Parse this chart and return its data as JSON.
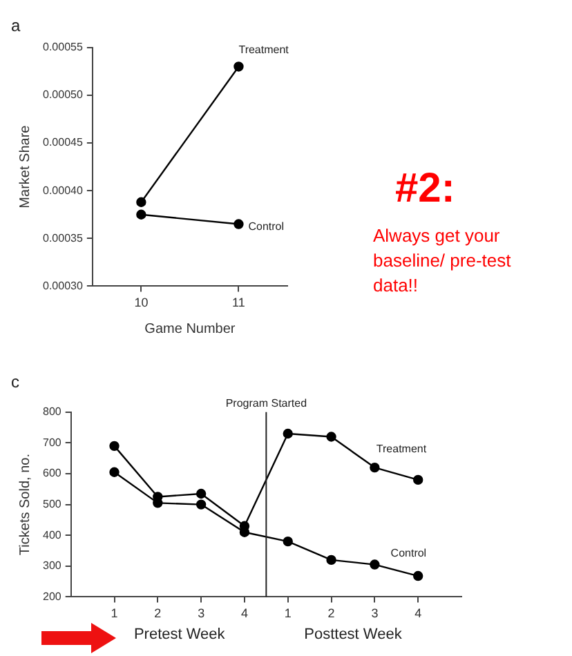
{
  "chart_data": [
    {
      "type": "line",
      "title": "a",
      "xlabel": "Game Number",
      "ylabel": "Market Share",
      "categories": [
        "10",
        "11"
      ],
      "ylim": [
        0.0003,
        0.00055
      ],
      "yticks": [
        {
          "value": 0.0003,
          "label": "0.00030"
        },
        0.00035,
        {
          "value": 0.0004,
          "label": "0.00040"
        },
        0.00045,
        {
          "value": 0.0005,
          "label": "0.00050"
        },
        0.00055
      ],
      "grid": false,
      "legend": false,
      "marker": "circle",
      "line_style": "solid",
      "series": [
        {
          "name": "Treatment",
          "color": "#000000",
          "values": [
            0.000388,
            0.00053
          ]
        },
        {
          "name": "Control",
          "color": "#000000",
          "values": [
            0.000375,
            0.000365
          ]
        }
      ]
    },
    {
      "type": "other",
      "title": "#2:",
      "color": "#ff0000",
      "annotations": [
        "Always get your baseline/ pre-test data!!"
      ]
    },
    {
      "type": "line",
      "title": "c",
      "ylabel": "Tickets Sold, no.",
      "categories": [
        "1",
        "2",
        "3",
        "4",
        "1",
        "2",
        "3",
        "4"
      ],
      "ylim": [
        200,
        800
      ],
      "yticks": [
        200,
        300,
        400,
        500,
        600,
        700,
        800
      ],
      "grid": false,
      "legend": false,
      "marker": "circle",
      "line_style": "solid",
      "annotations": [
        "Program Started",
        "Pretest Week",
        "Posttest Week"
      ],
      "series": [
        {
          "name": "Treatment",
          "color": "#000000",
          "values": [
            690,
            525,
            535,
            430,
            730,
            720,
            620,
            580
          ]
        },
        {
          "name": "Control",
          "color": "#000000",
          "values": [
            605,
            505,
            500,
            410,
            380,
            320,
            305,
            268
          ]
        }
      ]
    }
  ]
}
